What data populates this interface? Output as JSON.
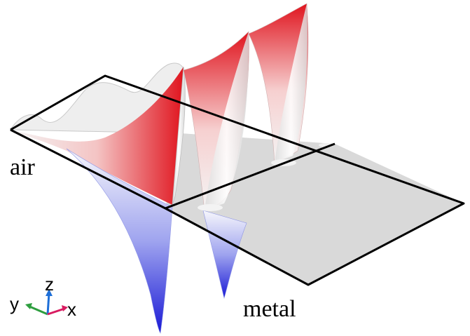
{
  "labels": {
    "upper_region": "air",
    "lower_region": "metal"
  },
  "axes": {
    "x": "x",
    "y": "y",
    "z": "z",
    "colors": {
      "x": "#d81b60",
      "y": "#2e9e3f",
      "z": "#1e6fd8"
    }
  },
  "colors": {
    "positive": "#e0141e",
    "negative": "#1a1ad6",
    "neutral": "#f2f2f2",
    "metal_plane": "#d9d9d9"
  }
}
